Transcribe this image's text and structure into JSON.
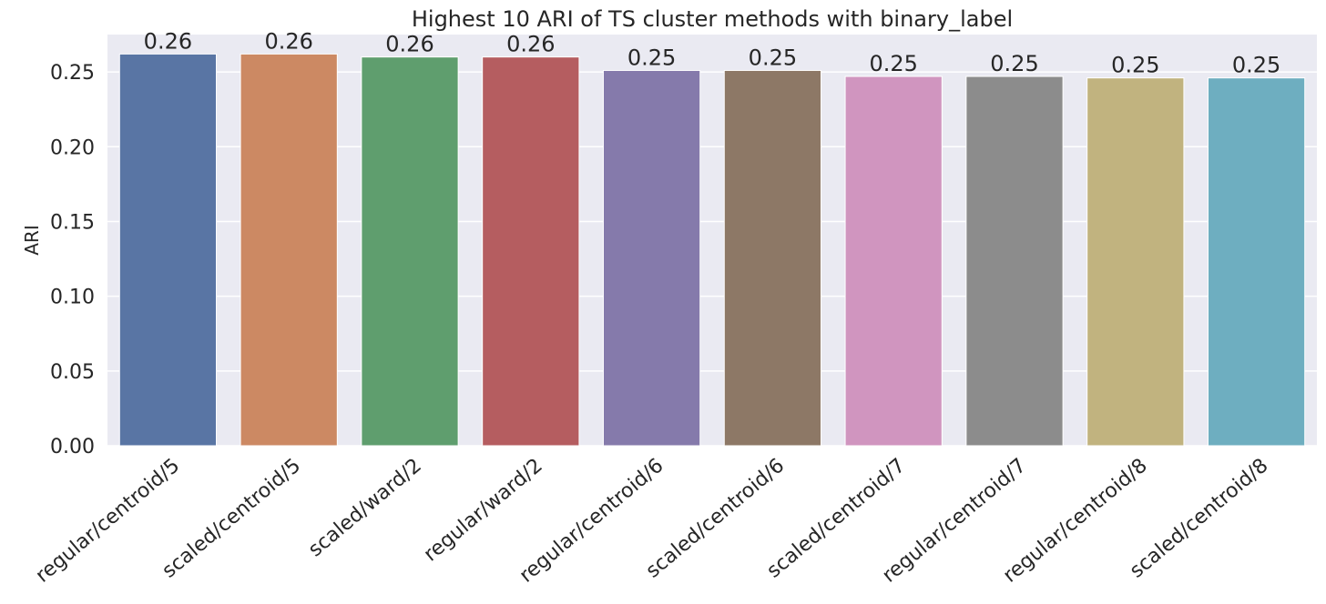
{
  "chart_data": {
    "type": "bar",
    "title": "Highest 10 ARI of TS cluster methods with binary_label",
    "xlabel": "",
    "ylabel": "ARI",
    "ylim": [
      0,
      0.275
    ],
    "yticks": [
      "0.00",
      "0.05",
      "0.10",
      "0.15",
      "0.20",
      "0.25"
    ],
    "grid": true,
    "categories": [
      "regular/centroid/5",
      "scaled/centroid/5",
      "scaled/ward/2",
      "regular/ward/2",
      "regular/centroid/6",
      "scaled/centroid/6",
      "scaled/centroid/7",
      "regular/centroid/7",
      "regular/centroid/8",
      "scaled/centroid/8"
    ],
    "values": [
      0.262,
      0.262,
      0.26,
      0.26,
      0.251,
      0.251,
      0.247,
      0.247,
      0.246,
      0.246
    ],
    "data_labels": [
      "0.26",
      "0.26",
      "0.26",
      "0.26",
      "0.25",
      "0.25",
      "0.25",
      "0.25",
      "0.25",
      "0.25"
    ],
    "colors": [
      "#5975a4",
      "#cc8963",
      "#5f9e6e",
      "#b55d60",
      "#857aab",
      "#8d7866",
      "#d095bf",
      "#8c8c8c",
      "#c1b37f",
      "#6eaec0"
    ],
    "background": "#eaeaf2",
    "grid_color": "#ffffff"
  }
}
